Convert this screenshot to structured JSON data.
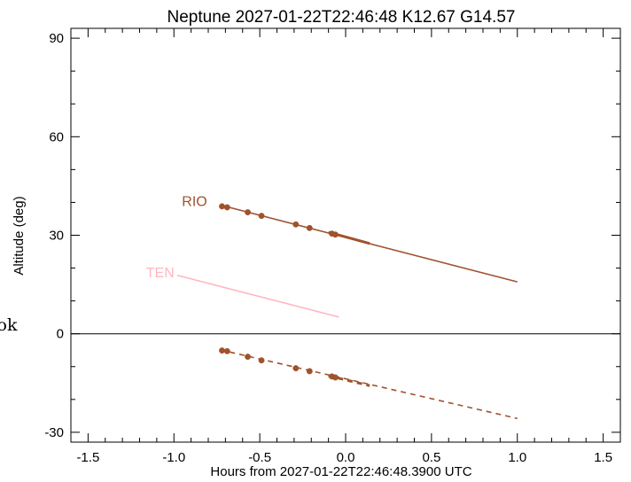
{
  "chart_data": {
    "type": "line",
    "title": "Neptune 2027-01-22T22:46:48  K12.67  G14.57",
    "xlabel": "Hours from 2027-01-22T22:46:48.3900 UTC",
    "ylabel": "Altitude (deg)",
    "xlim": [
      -1.6,
      1.6
    ],
    "ylim": [
      -33,
      93
    ],
    "xticks": [
      -1.5,
      -1.0,
      -0.5,
      0.0,
      0.5,
      1.0,
      1.5
    ],
    "xtick_labels": [
      "-1.5",
      "-1.0",
      "-0.5",
      "0.0",
      "0.5",
      "1.0",
      "1.5"
    ],
    "yticks": [
      -30,
      0,
      30,
      60,
      90
    ],
    "ytick_labels": [
      "-30",
      "0",
      "30",
      "60",
      "90"
    ],
    "grid": false,
    "reference_line_y": 0,
    "side_text": "ok",
    "series": [
      {
        "name": "RIO",
        "color": "#a0522d",
        "style": "solid",
        "x": [
          -0.73,
          1.0
        ],
        "y": [
          39.2,
          15.8
        ],
        "label_at": [
          -0.88,
          40.3
        ]
      },
      {
        "name": "RIO",
        "color": "#a0522d",
        "style": "dashed",
        "x": [
          -0.73,
          1.0
        ],
        "y": [
          -4.9,
          -25.8
        ]
      },
      {
        "name": "TEN",
        "color": "#ffb6c1",
        "style": "solid",
        "x": [
          -0.98,
          -0.04
        ],
        "y": [
          17.8,
          5.1
        ],
        "label_at": [
          -1.08,
          18.5
        ]
      }
    ],
    "markers": [
      {
        "color": "#a0522d",
        "x": -0.72,
        "y": 38.8
      },
      {
        "color": "#a0522d",
        "x": -0.69,
        "y": 38.5
      },
      {
        "color": "#a0522d",
        "x": -0.57,
        "y": 37.0
      },
      {
        "color": "#a0522d",
        "x": -0.49,
        "y": 35.9
      },
      {
        "color": "#a0522d",
        "x": -0.29,
        "y": 33.3
      },
      {
        "color": "#a0522d",
        "x": -0.21,
        "y": 32.2
      },
      {
        "color": "#a0522d",
        "x": -0.08,
        "y": 30.5
      },
      {
        "color": "#a0522d",
        "x": -0.06,
        "y": 30.2
      },
      {
        "color": "#a0522d",
        "x": -0.72,
        "y": -5.1
      },
      {
        "color": "#a0522d",
        "x": -0.69,
        "y": -5.3
      },
      {
        "color": "#a0522d",
        "x": -0.57,
        "y": -7.0
      },
      {
        "color": "#a0522d",
        "x": -0.49,
        "y": -8.1
      },
      {
        "color": "#a0522d",
        "x": -0.29,
        "y": -10.5
      },
      {
        "color": "#a0522d",
        "x": -0.21,
        "y": -11.4
      },
      {
        "color": "#a0522d",
        "x": -0.08,
        "y": -13.0
      },
      {
        "color": "#a0522d",
        "x": -0.06,
        "y": -13.3
      }
    ],
    "thick_segments": [
      {
        "color": "#a0522d",
        "style": "solid",
        "x": [
          -0.1,
          0.14
        ],
        "y": [
          30.9,
          27.5
        ]
      },
      {
        "color": "#a0522d",
        "style": "dashed",
        "x": [
          -0.1,
          0.14
        ],
        "y": [
          -12.8,
          -15.8
        ]
      }
    ]
  }
}
